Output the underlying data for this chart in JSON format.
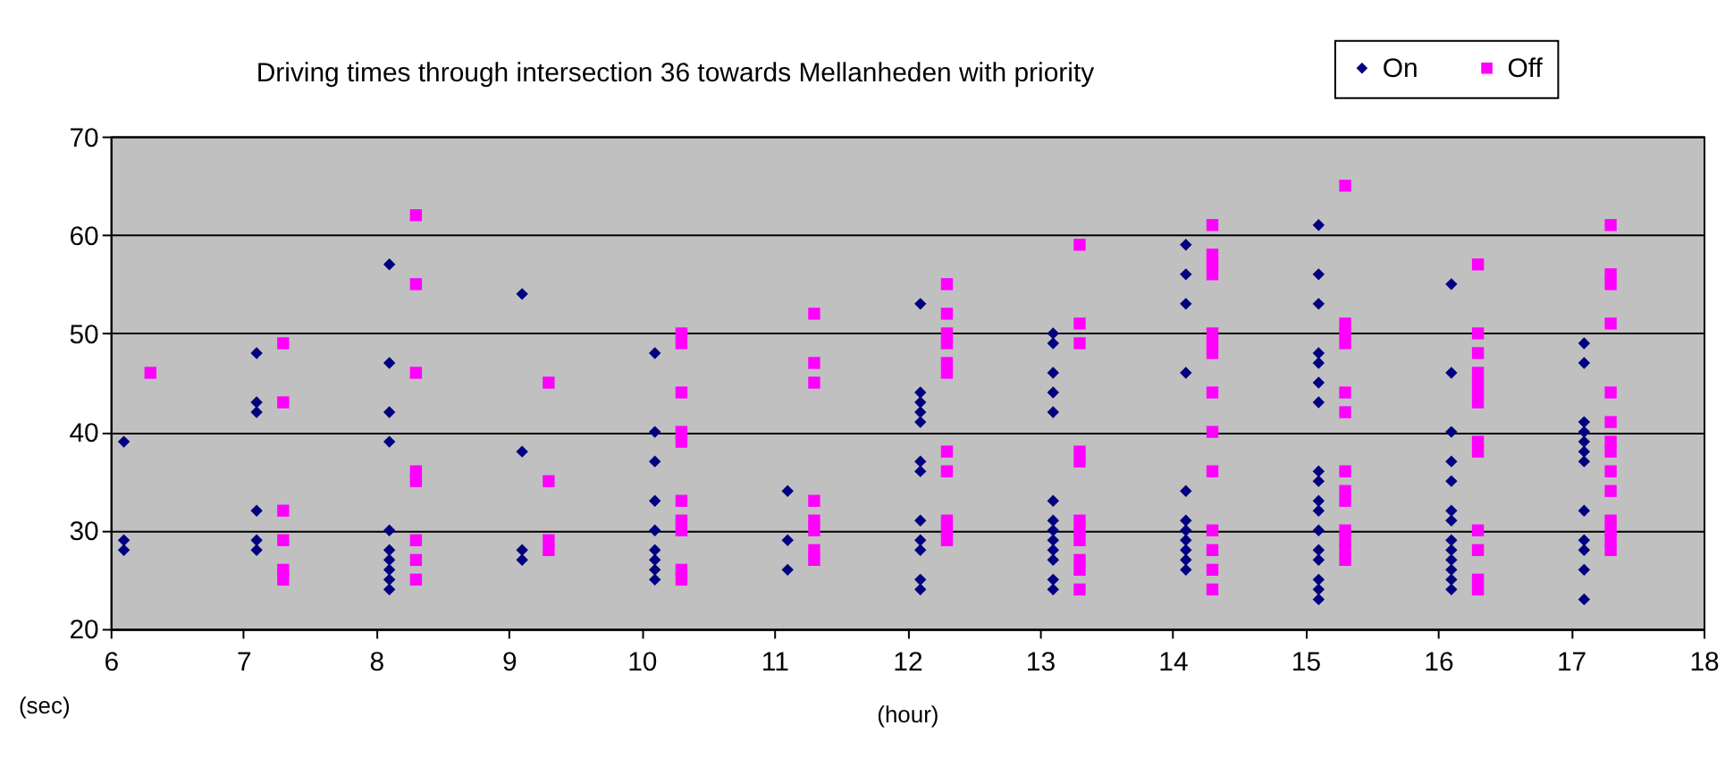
{
  "chart_data": {
    "type": "scatter",
    "title": "Driving times through intersection 36 towards Mellanheden with priority",
    "xlabel": "(hour)",
    "ylabel": "(sec)",
    "xlim": [
      6,
      18
    ],
    "xticks": [
      6,
      7,
      8,
      9,
      10,
      11,
      12,
      13,
      14,
      15,
      16,
      17,
      18
    ],
    "ylim": [
      20,
      70
    ],
    "yticks": [
      20,
      30,
      40,
      50,
      60,
      70
    ],
    "grid": "y",
    "legend": "top right",
    "series": [
      {
        "name": "On",
        "color": "#000080",
        "marker": "diamond",
        "x": [
          6.1,
          6.1,
          6.1,
          7.1,
          7.1,
          7.1,
          7.1,
          7.1,
          7.1,
          8.1,
          8.1,
          8.1,
          8.1,
          8.1,
          8.1,
          8.1,
          8.1,
          8.1,
          8.1,
          9.1,
          9.1,
          9.1,
          9.1,
          10.1,
          10.1,
          10.1,
          10.1,
          10.1,
          10.1,
          10.1,
          10.1,
          10.1,
          11.1,
          11.1,
          11.1,
          12.1,
          12.1,
          12.1,
          12.1,
          12.1,
          12.1,
          12.1,
          12.1,
          12.1,
          12.1,
          12.1,
          12.1,
          13.1,
          13.1,
          13.1,
          13.1,
          13.1,
          13.1,
          13.1,
          13.1,
          13.1,
          13.1,
          13.1,
          13.1,
          13.1,
          14.1,
          14.1,
          14.1,
          14.1,
          14.1,
          14.1,
          14.1,
          14.1,
          14.1,
          14.1,
          14.1,
          15.1,
          15.1,
          15.1,
          15.1,
          15.1,
          15.1,
          15.1,
          15.1,
          15.1,
          15.1,
          15.1,
          15.1,
          15.1,
          15.1,
          15.1,
          15.1,
          15.1,
          16.1,
          16.1,
          16.1,
          16.1,
          16.1,
          16.1,
          16.1,
          16.1,
          16.1,
          16.1,
          16.1,
          16.1,
          16.1,
          17.1,
          17.1,
          17.1,
          17.1,
          17.1,
          17.1,
          17.1,
          17.1,
          17.1,
          17.1,
          17.1,
          17.1
        ],
        "values": [
          39,
          29,
          28,
          48,
          43,
          42,
          32,
          29,
          28,
          57,
          47,
          42,
          39,
          30,
          28,
          27,
          26,
          25,
          24,
          54,
          38,
          28,
          27,
          48,
          40,
          37,
          33,
          30,
          28,
          27,
          26,
          25,
          34,
          29,
          26,
          53,
          44,
          43,
          42,
          41,
          37,
          36,
          31,
          29,
          28,
          25,
          24,
          50,
          49,
          46,
          44,
          42,
          33,
          31,
          30,
          29,
          28,
          27,
          25,
          24,
          59,
          56,
          53,
          46,
          34,
          31,
          30,
          29,
          28,
          27,
          26,
          61,
          56,
          53,
          48,
          47,
          45,
          43,
          36,
          35,
          33,
          32,
          30,
          28,
          27,
          25,
          24,
          23,
          55,
          46,
          40,
          37,
          35,
          32,
          31,
          29,
          28,
          27,
          26,
          25,
          24,
          49,
          47,
          41,
          40,
          39,
          38,
          37,
          32,
          29,
          28,
          26,
          23
        ]
      },
      {
        "name": "Off",
        "color": "#ff00ff",
        "marker": "square",
        "x": [
          6.3,
          7.3,
          7.3,
          7.3,
          7.3,
          7.3,
          7.3,
          8.3,
          8.3,
          8.3,
          8.3,
          8.3,
          8.3,
          8.3,
          8.3,
          9.3,
          9.3,
          9.3,
          9.3,
          10.3,
          10.3,
          10.3,
          10.3,
          10.3,
          10.3,
          10.3,
          10.3,
          10.3,
          10.3,
          11.3,
          11.3,
          11.3,
          11.3,
          11.3,
          11.3,
          11.3,
          11.3,
          12.3,
          12.3,
          12.3,
          12.3,
          12.3,
          12.3,
          12.3,
          12.3,
          12.3,
          12.3,
          12.3,
          13.3,
          13.3,
          13.3,
          13.3,
          13.3,
          13.3,
          13.3,
          13.3,
          13.3,
          13.3,
          13.3,
          14.3,
          14.3,
          14.3,
          14.3,
          14.3,
          14.3,
          14.3,
          14.3,
          14.3,
          14.3,
          14.3,
          14.3,
          14.3,
          14.3,
          15.3,
          15.3,
          15.3,
          15.3,
          15.3,
          15.3,
          15.3,
          15.3,
          15.3,
          15.3,
          15.3,
          15.3,
          15.3,
          16.3,
          16.3,
          16.3,
          16.3,
          16.3,
          16.3,
          16.3,
          16.3,
          16.3,
          16.3,
          16.3,
          16.3,
          16.3,
          17.3,
          17.3,
          17.3,
          17.3,
          17.3,
          17.3,
          17.3,
          17.3,
          17.3,
          17.3,
          17.3,
          17.3,
          17.3,
          17.3
        ],
        "values": [
          46,
          49,
          43,
          32,
          29,
          26,
          25,
          62,
          55,
          46,
          36,
          35,
          29,
          27,
          25,
          45,
          35,
          29,
          28,
          50,
          49,
          44,
          40,
          39,
          33,
          31,
          30,
          26,
          25,
          52,
          47,
          45,
          33,
          31,
          30,
          28,
          27,
          55,
          52,
          50,
          49,
          47,
          46,
          38,
          36,
          31,
          30,
          29,
          59,
          51,
          49,
          38,
          37,
          31,
          30,
          29,
          27,
          26,
          24,
          61,
          58,
          57,
          56,
          50,
          49,
          48,
          44,
          40,
          36,
          30,
          28,
          26,
          24,
          65,
          51,
          50,
          49,
          44,
          42,
          36,
          34,
          33,
          30,
          29,
          28,
          27,
          57,
          50,
          48,
          46,
          45,
          44,
          43,
          39,
          38,
          30,
          28,
          25,
          24,
          61,
          56,
          55,
          51,
          44,
          41,
          39,
          38,
          36,
          34,
          31,
          30,
          29,
          28
        ]
      }
    ]
  }
}
